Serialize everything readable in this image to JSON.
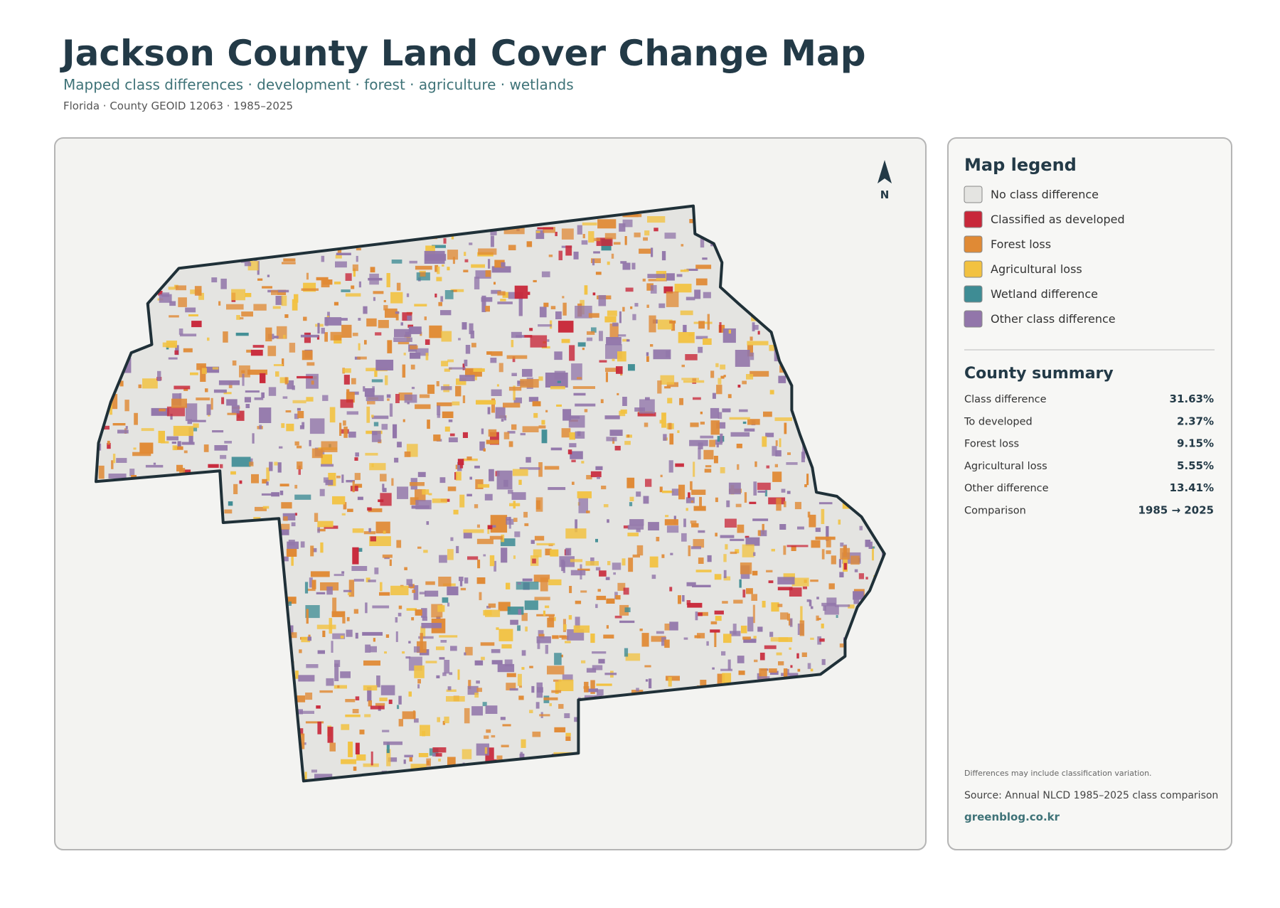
{
  "header": {
    "title": "Jackson County Land Cover Change Map",
    "subtitle": "Mapped class differences · development · forest · agriculture · wetlands",
    "meta": "Florida · County GEOID 12063 · 1985–2025"
  },
  "map": {
    "north_label": "N"
  },
  "legend": {
    "title": "Map legend",
    "items": [
      {
        "label": "No class difference",
        "color": "#e4e4e1"
      },
      {
        "label": "Classified as developed",
        "color": "#c8283a"
      },
      {
        "label": "Forest loss",
        "color": "#e08a35"
      },
      {
        "label": "Agricultural loss",
        "color": "#f2c241"
      },
      {
        "label": "Wetland difference",
        "color": "#3e8c94"
      },
      {
        "label": "Other class difference",
        "color": "#9276aa"
      }
    ]
  },
  "summary": {
    "title": "County summary",
    "rows": [
      [
        "Class difference",
        "31.63%"
      ],
      [
        "To developed",
        "2.37%"
      ],
      [
        "Forest loss",
        "9.15%"
      ],
      [
        "Agricultural loss",
        "5.55%"
      ],
      [
        "Other difference",
        "13.41%"
      ],
      [
        "Comparison",
        "1985 → 2025"
      ]
    ]
  },
  "footer": {
    "note": "Differences may include classification variation.",
    "source": "Source: Annual NLCD 1985–2025 class comparison",
    "link": "greenblog.co.kr"
  }
}
